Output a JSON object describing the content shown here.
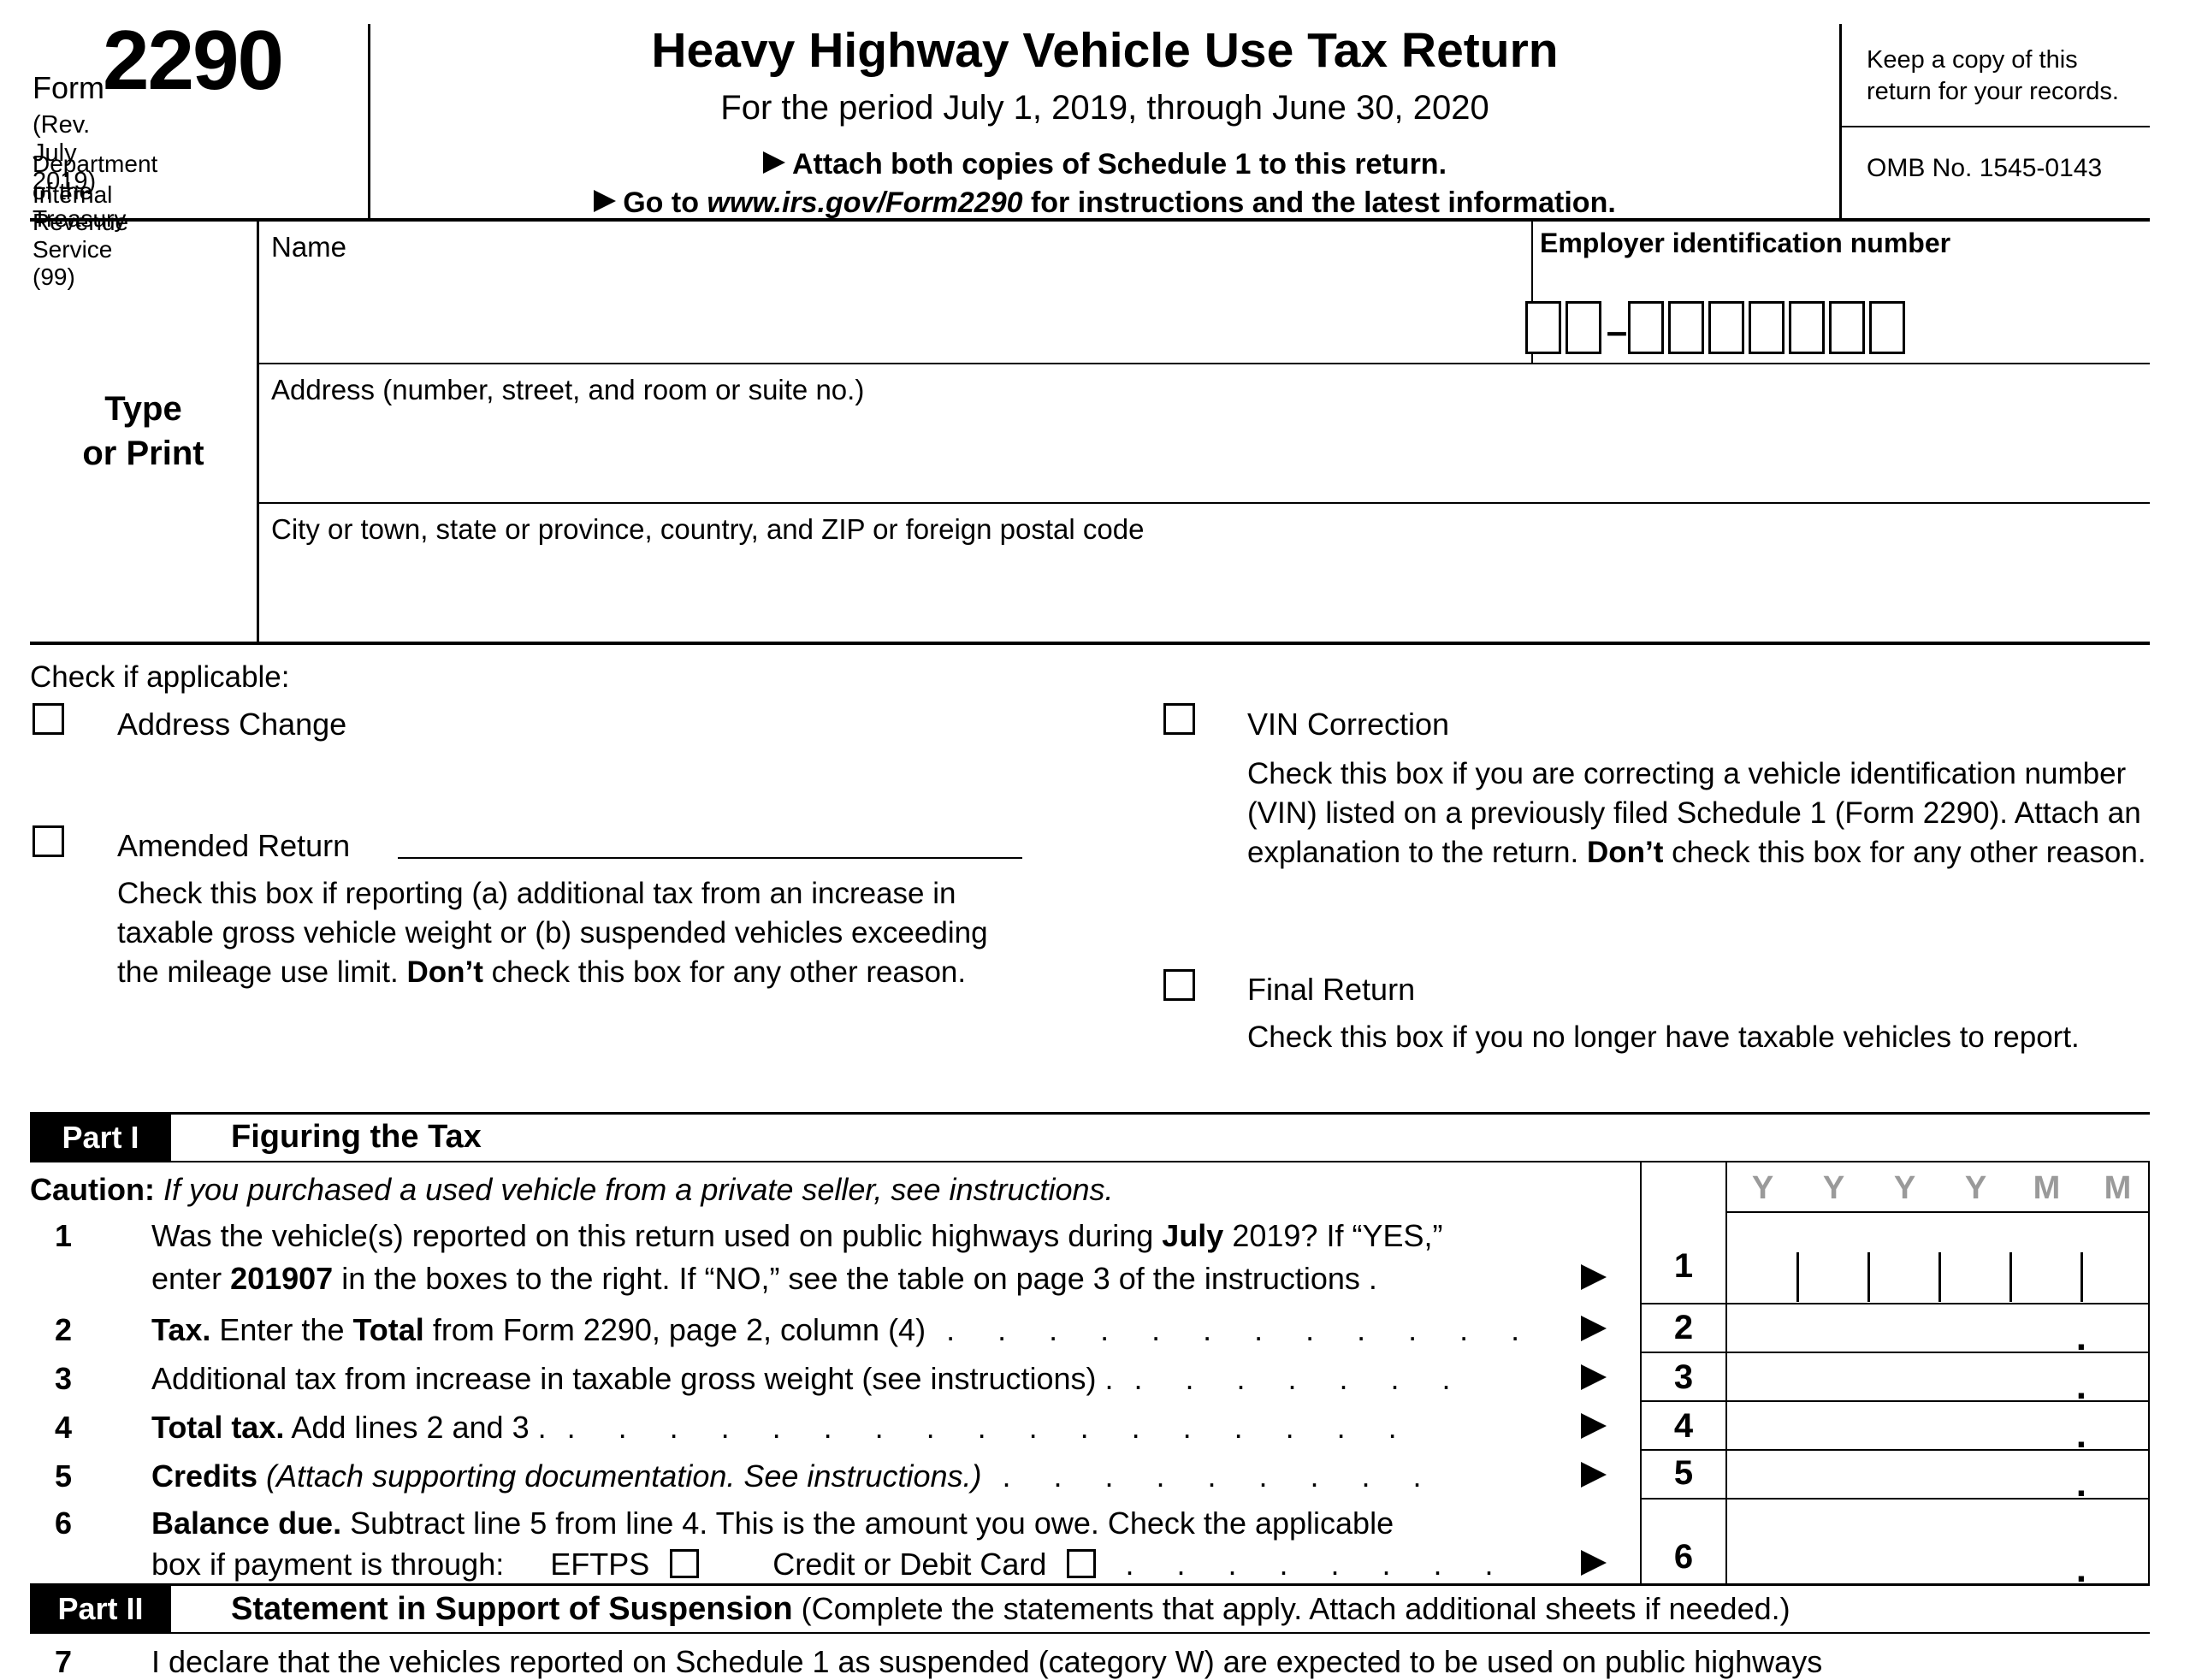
{
  "form_block": {
    "form_label": "Form",
    "form_number": "2290",
    "revision": "(Rev. July 2019)",
    "department": "Department of the Treasury",
    "agency": "Internal Revenue Service (99)"
  },
  "header": {
    "title": "Heavy Highway Vehicle Use Tax Return",
    "period": "For the period July 1, 2019, through June 30, 2020",
    "attach_note": "Attach both copies of Schedule 1 to this return.",
    "goto_parts": [
      {
        "t": "Go to "
      },
      {
        "t": "www.irs.gov/Form2290",
        "i": true
      },
      {
        "t": " for instructions and the latest information."
      }
    ],
    "keep_note": "Keep a copy of this return for your records.",
    "omb": "OMB No. 1545-0143"
  },
  "entity": {
    "type_line1": "Type",
    "type_line2": "or Print",
    "name_label": "Name",
    "ein_label": "Employer identification number",
    "ein_dash": "–",
    "address_label": "Address (number, street, and room or suite no.)",
    "city_label": "City or town, state or province, country, and ZIP or foreign postal code"
  },
  "checkboxes": {
    "heading": "Check if applicable:",
    "address_change": "Address Change",
    "amended_return": "Amended Return",
    "amended_desc": [
      {
        "t": "Check this box if reporting (a) additional tax from an increase in taxable gross vehicle weight or (b) suspended vehicles exceeding the mileage use limit. "
      },
      {
        "t": "Don’t",
        "b": true
      },
      {
        "t": " check this box for any other reason."
      }
    ],
    "vin_correction": "VIN Correction",
    "vin_desc": [
      {
        "t": "Check this box if you are correcting a vehicle identification number (VIN) listed on a previously filed Schedule 1 (Form 2290). Attach an explanation to the return. "
      },
      {
        "t": "Don’t",
        "b": true
      },
      {
        "t": " check this box for any other reason."
      }
    ],
    "final_return": "Final Return",
    "final_desc": [
      {
        "t": "Check this box if you no longer have taxable vehicles to report."
      }
    ]
  },
  "part1": {
    "label": "Part I",
    "title": "Figuring the Tax",
    "caution": [
      {
        "t": "Caution:",
        "b": true
      },
      {
        "t": " If you purchased a used vehicle from a private seller, see instructions.",
        "i": true
      }
    ],
    "line1_no": "1",
    "line1a": [
      {
        "t": "Was the vehicle(s) reported on this return used on public highways during "
      },
      {
        "t": "July",
        "b": true
      },
      {
        "t": " 2019? If “YES,”"
      }
    ],
    "line1b": [
      {
        "t": "enter "
      },
      {
        "t": "201907",
        "b": true
      },
      {
        "t": " in the boxes to the right. If “NO,” see the table on page 3 of the instructions ."
      }
    ],
    "line2_no": "2",
    "line2": [
      {
        "t": "Tax.",
        "b": true
      },
      {
        "t": " Enter the "
      },
      {
        "t": "Total",
        "b": true
      },
      {
        "t": " from Form 2290, page 2, column (4)"
      }
    ],
    "line2_dots": ". . . . . . . . . . . .",
    "line3_no": "3",
    "line3": [
      {
        "t": "Additional tax from increase in taxable gross weight (see instructions) ."
      }
    ],
    "line3_dots": ". . . . . . .",
    "line4_no": "4",
    "line4": [
      {
        "t": "Total tax.",
        "b": true
      },
      {
        "t": " Add lines 2 and 3 ."
      }
    ],
    "line4_dots": ". . . . . . . . . . . . . . . . .",
    "line5_no": "5",
    "line5": [
      {
        "t": "Credits",
        "b": true
      },
      {
        "t": " (Attach supporting documentation. See instructions.)",
        "i": true
      }
    ],
    "line5_dots": ". . . . . . . . .",
    "line6_no": "6",
    "line6a": [
      {
        "t": "Balance due.",
        "b": true
      },
      {
        "t": " Subtract line 5 from line 4. This is the amount you owe. Check the applicable"
      }
    ],
    "line6b_prefix": "box if payment is through:",
    "eftps_label": "EFTPS",
    "card_label": "Credit or Debit Card",
    "line6_dots": ". . . . . . . ."
  },
  "table": {
    "ymm": [
      "Y",
      "Y",
      "Y",
      "Y",
      "M",
      "M"
    ],
    "row_numbers": [
      "1",
      "2",
      "3",
      "4",
      "5",
      "6"
    ],
    "decimal": "."
  },
  "part2": {
    "label": "Part II",
    "title": "Statement in Support of Suspension",
    "subtitle": " (Complete the statements that apply. Attach additional sheets if needed.)",
    "line7_no": "7",
    "line7": "I declare that the vehicles reported on Schedule 1 as suspended (category W) are expected to be used on public highways"
  }
}
